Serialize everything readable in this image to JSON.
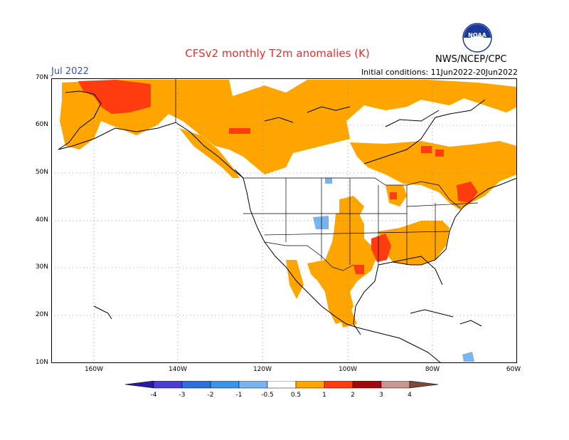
{
  "header": {
    "title": "CFSv2 monthly T2m anomalies (K)",
    "month": "Jul 2022",
    "initial_conditions": "Initial conditions: 11Jun2022-20Jun2022",
    "agency": "NWS/NCEP/CPC",
    "logo_text": "NOAA"
  },
  "map": {
    "lat_labels": [
      "70N",
      "60N",
      "50N",
      "40N",
      "30N",
      "20N",
      "10N"
    ],
    "lon_labels": [
      "160W",
      "140W",
      "120W",
      "100W",
      "80W",
      "60W"
    ],
    "lat_range": [
      10,
      70
    ],
    "lon_range": [
      -170,
      -60
    ],
    "grid_style": "dotted",
    "colors": {
      "land_line": "#000000",
      "warm_05_1": "#ffa500",
      "warm_1_2": "#ff3b10",
      "cool_05_1": "#78b4f0"
    }
  },
  "legend": {
    "labels": [
      "-4",
      "-3",
      "-2",
      "-1",
      "-0.5",
      "0.5",
      "1",
      "2",
      "3",
      "4"
    ],
    "colors": [
      "#2a1aa0",
      "#4a3fd0",
      "#2e6fd8",
      "#3c94e8",
      "#78b4f0",
      "#ffffff",
      "#ffa500",
      "#ff3b10",
      "#a00a0a",
      "#c89890",
      "#7a4a38"
    ]
  }
}
